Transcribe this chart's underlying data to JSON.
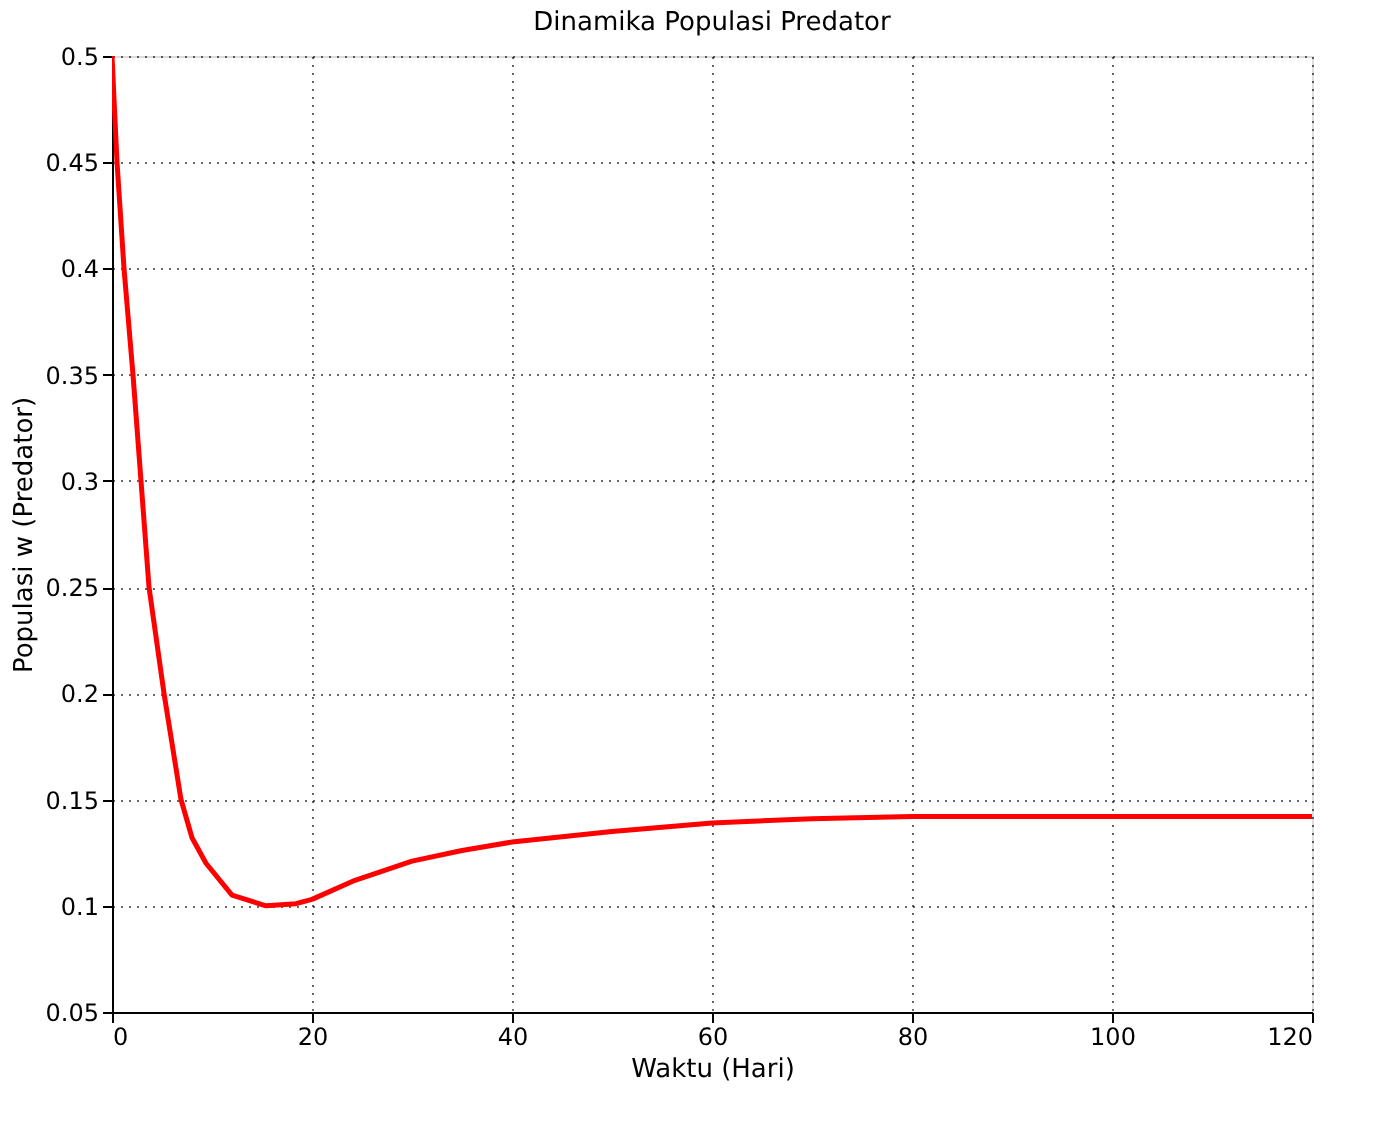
{
  "chart_data": {
    "type": "line",
    "title": "Dinamika Populasi Predator",
    "xlabel": "Waktu (Hari)",
    "ylabel": "Populasi w (Predator)",
    "x": [
      0,
      0.5,
      1.2,
      2.1,
      2.9,
      3.7,
      5.2,
      6.9,
      8,
      9.4,
      12,
      15.4,
      18.4,
      20,
      24.3,
      30,
      35,
      40,
      50,
      60,
      70,
      80,
      100,
      120
    ],
    "series": [
      {
        "color": "#ff0000",
        "values": [
          0.5,
          0.45,
          0.4,
          0.35,
          0.3,
          0.25,
          0.2,
          0.15,
          0.132,
          0.12,
          0.105,
          0.1,
          0.101,
          0.103,
          0.112,
          0.121,
          0.126,
          0.13,
          0.135,
          0.139,
          0.141,
          0.142,
          0.142,
          0.142
        ]
      }
    ],
    "xlim": [
      0,
      120
    ],
    "xticks": [
      0,
      20,
      40,
      60,
      80,
      100,
      120
    ],
    "ylim": [
      0.05,
      0.5
    ],
    "yticks": [
      0.05,
      0.1,
      0.15,
      0.2,
      0.25,
      0.3,
      0.35,
      0.4,
      0.45,
      0.5
    ],
    "grid": true,
    "marker": "none",
    "line_style": "solid"
  }
}
